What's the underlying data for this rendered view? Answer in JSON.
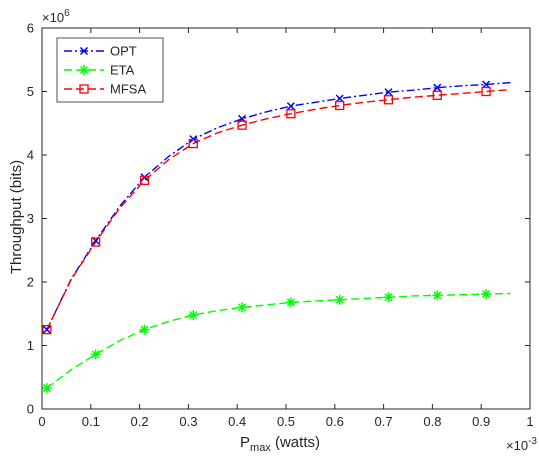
{
  "chart_data": {
    "type": "line",
    "title": "",
    "xlabel": {
      "main": "P",
      "sub": "max",
      "rest": " (watts)"
    },
    "ylabel": "Throughput (bits)",
    "x_exponent": {
      "base": "×10",
      "power": "-3"
    },
    "y_exponent": {
      "base": "×10",
      "power": "6"
    },
    "xlim": [
      0,
      1
    ],
    "ylim": [
      0,
      6
    ],
    "x_ticks": [
      0,
      0.1,
      0.2,
      0.3,
      0.4,
      0.5,
      0.6,
      0.7,
      0.8,
      0.9,
      1
    ],
    "x_tick_labels": [
      "0",
      "0.1",
      "0.2",
      "0.3",
      "0.4",
      "0.5",
      "0.6",
      "0.7",
      "0.8",
      "0.9",
      "1"
    ],
    "y_ticks": [
      0,
      1,
      2,
      3,
      4,
      5,
      6
    ],
    "y_tick_labels": [
      "0",
      "1",
      "2",
      "3",
      "4",
      "5",
      "6"
    ],
    "grid": false,
    "legend_position": "top-left",
    "x_unit_note": "x values in units of 10^-3 watts",
    "markers_x": [
      0.01,
      0.11,
      0.21,
      0.31,
      0.41,
      0.51,
      0.61,
      0.71,
      0.81,
      0.91
    ],
    "series": [
      {
        "name": "OPT",
        "color": "#0000ff",
        "line_style": "dash-dot",
        "marker": "x",
        "x": [
          0.01,
          0.06,
          0.11,
          0.16,
          0.21,
          0.26,
          0.31,
          0.36,
          0.41,
          0.46,
          0.51,
          0.56,
          0.61,
          0.66,
          0.71,
          0.76,
          0.81,
          0.86,
          0.91,
          0.96
        ],
        "y": [
          1.25,
          2.05,
          2.65,
          3.2,
          3.65,
          3.98,
          4.25,
          4.43,
          4.57,
          4.68,
          4.77,
          4.83,
          4.89,
          4.94,
          4.99,
          5.02,
          5.06,
          5.09,
          5.11,
          5.14
        ]
      },
      {
        "name": "ETA",
        "color": "#00ff00",
        "line_style": "dashed",
        "marker": "asterisk",
        "x": [
          0.01,
          0.06,
          0.11,
          0.16,
          0.21,
          0.26,
          0.31,
          0.36,
          0.41,
          0.46,
          0.51,
          0.56,
          0.61,
          0.66,
          0.71,
          0.76,
          0.81,
          0.86,
          0.91,
          0.96
        ],
        "y": [
          0.33,
          0.62,
          0.86,
          1.08,
          1.25,
          1.38,
          1.48,
          1.55,
          1.6,
          1.64,
          1.68,
          1.7,
          1.72,
          1.74,
          1.76,
          1.78,
          1.79,
          1.8,
          1.81,
          1.82
        ]
      },
      {
        "name": "MFSA",
        "color": "#ff0000",
        "line_style": "dashed",
        "marker": "square",
        "x": [
          0.01,
          0.06,
          0.11,
          0.16,
          0.21,
          0.26,
          0.31,
          0.36,
          0.41,
          0.46,
          0.51,
          0.56,
          0.61,
          0.66,
          0.71,
          0.76,
          0.81,
          0.86,
          0.91,
          0.96
        ],
        "y": [
          1.25,
          2.04,
          2.63,
          3.17,
          3.6,
          3.93,
          4.18,
          4.35,
          4.47,
          4.57,
          4.65,
          4.72,
          4.78,
          4.83,
          4.87,
          4.91,
          4.94,
          4.97,
          5.0,
          5.03
        ]
      }
    ]
  }
}
